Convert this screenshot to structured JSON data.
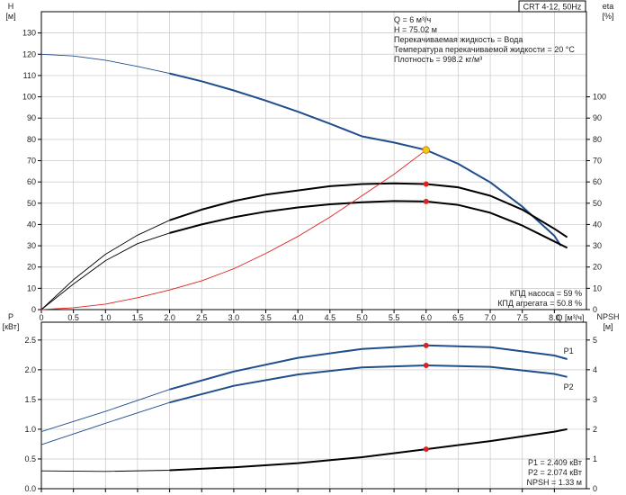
{
  "chart_data": [
    {
      "type": "line",
      "title": "CRT 4-12, 50Hz",
      "xlabel": "Q [м³/ч]",
      "ylabel_left": [
        "H",
        "[м]"
      ],
      "ylabel_right": [
        "eta",
        "[%]"
      ],
      "xlim": [
        0,
        8.5
      ],
      "ylim_left": [
        0,
        140
      ],
      "ylim_right": [
        0,
        140
      ],
      "grid": true,
      "x_ticks": [
        0,
        0.5,
        1.0,
        1.5,
        2.0,
        2.5,
        3.0,
        3.5,
        4.0,
        4.5,
        5.0,
        5.5,
        6.0,
        6.5,
        7.0,
        7.5,
        8.0
      ],
      "x_tick_labels": [
        "0",
        "0.5",
        "1.0",
        "1.5",
        "2.0",
        "2.5",
        "3.0",
        "3.5",
        "4.0",
        "4.5",
        "5.0",
        "5.5",
        "6.0",
        "6.5",
        "7.0",
        "7.5",
        "8.0"
      ],
      "y_ticks_left": [
        0,
        10,
        20,
        30,
        40,
        50,
        60,
        70,
        80,
        90,
        100,
        110,
        120,
        130
      ],
      "y_ticks_right": [
        0,
        10,
        20,
        30,
        40,
        50,
        60,
        70,
        80,
        90,
        100
      ],
      "info_lines": [
        "Q = 6 м³/ч",
        "H = 75.02 м",
        "Перекачиваемая жидкость = Вода",
        "Температура перекачиваемой жидкости = 20 °C",
        "Плотность = 998.2 кг/м³"
      ],
      "result_lines": [
        "КПД насоса = 59 %",
        "КПД агрегата = 50.8 %"
      ],
      "series": [
        {
          "name": "",
          "axis": "left",
          "color": "#1f4e8c",
          "x": [
            0,
            0.5,
            1,
            1.5,
            2,
            2.5,
            3,
            3.5,
            4,
            4.5,
            5,
            5.5,
            6,
            6.5,
            7,
            7.5,
            8,
            8.1
          ],
          "y": [
            120,
            119.2,
            117.2,
            114.3,
            111,
            107.3,
            103,
            98.2,
            93,
            87.4,
            81.4,
            78.5,
            75,
            68.5,
            59.8,
            48.4,
            34.7,
            30
          ]
        },
        {
          "name": "",
          "axis": "right",
          "color": "#000000",
          "x": [
            0,
            0.5,
            1,
            1.5,
            2,
            2.5,
            3,
            3.5,
            4,
            4.5,
            5,
            5.5,
            6,
            6.5,
            7,
            7.5,
            8,
            8.2
          ],
          "y": [
            0,
            14,
            26,
            35,
            42,
            47,
            51,
            54,
            56,
            58,
            59,
            59.3,
            59,
            57.5,
            53.5,
            47,
            38,
            34
          ]
        },
        {
          "name": "",
          "axis": "right",
          "color": "#000000",
          "x": [
            0,
            0.5,
            1,
            1.5,
            2,
            2.5,
            3,
            3.5,
            4,
            4.5,
            5,
            5.5,
            6,
            6.5,
            7,
            7.5,
            8,
            8.2
          ],
          "y": [
            0,
            12,
            23,
            31,
            36,
            40,
            43.4,
            46,
            48,
            49.5,
            50.4,
            51,
            50.8,
            49.2,
            45.5,
            39.5,
            32,
            29
          ]
        },
        {
          "name": "",
          "axis": "left",
          "color": "#e02020",
          "x": [
            0,
            0.5,
            1,
            1.5,
            2,
            2.5,
            3,
            3.5,
            4,
            4.5,
            5,
            5.5,
            6
          ],
          "y": [
            0,
            0.9,
            2.6,
            5.6,
            9.2,
            13.5,
            19.2,
            26.4,
            34.4,
            43.5,
            53.5,
            63.6,
            75
          ]
        }
      ],
      "markers": [
        {
          "axis": "left",
          "x": 6,
          "y": 75.02,
          "color": "#f5c518"
        },
        {
          "axis": "right",
          "x": 6,
          "y": 59,
          "color": "#e02020"
        },
        {
          "axis": "right",
          "x": 6,
          "y": 50.8,
          "color": "#e02020"
        }
      ]
    },
    {
      "type": "line",
      "xlabel": "",
      "ylabel_left": [
        "P",
        "[кВт]"
      ],
      "ylabel_right": [
        "NPSH",
        "[м]"
      ],
      "xlim": [
        0,
        8.5
      ],
      "ylim_left": [
        0,
        2.8
      ],
      "ylim_right": [
        0,
        5.6
      ],
      "grid": true,
      "x_ticks": [
        0,
        0.5,
        1.0,
        1.5,
        2.0,
        2.5,
        3.0,
        3.5,
        4.0,
        4.5,
        5.0,
        5.5,
        6.0,
        6.5,
        7.0,
        7.5,
        8.0
      ],
      "y_ticks_left": [
        0,
        0.5,
        1.0,
        1.5,
        2.0,
        2.5
      ],
      "y_tick_labels_left": [
        "0.0",
        "0.5",
        "1.0",
        "1.5",
        "2.0",
        "2.5"
      ],
      "y_ticks_right": [
        0,
        1,
        2,
        3,
        4,
        5
      ],
      "result_lines": [
        "P1 = 2.409 кВт",
        "P2 = 2.074 кВт",
        "NPSH = 1.33 м"
      ],
      "series": [
        {
          "name": "P1",
          "axis": "left",
          "color": "#1f4e8c",
          "x": [
            0,
            1,
            2,
            3,
            4,
            5,
            6,
            7,
            8,
            8.2
          ],
          "y": [
            0.96,
            1.3,
            1.67,
            1.97,
            2.2,
            2.35,
            2.41,
            2.38,
            2.24,
            2.18
          ]
        },
        {
          "name": "P2",
          "axis": "left",
          "color": "#1f4e8c",
          "x": [
            0,
            1,
            2,
            3,
            4,
            5,
            6,
            7,
            8,
            8.2
          ],
          "y": [
            0.74,
            1.1,
            1.45,
            1.73,
            1.92,
            2.04,
            2.074,
            2.05,
            1.93,
            1.88
          ]
        },
        {
          "name": "",
          "axis": "right",
          "color": "#000000",
          "x": [
            0,
            1,
            2,
            3,
            4,
            5,
            6,
            7,
            8,
            8.2
          ],
          "y": [
            0.6,
            0.58,
            0.62,
            0.72,
            0.86,
            1.06,
            1.33,
            1.6,
            1.92,
            2.0
          ]
        }
      ],
      "markers": [
        {
          "axis": "left",
          "x": 6,
          "y": 2.409,
          "color": "#e02020"
        },
        {
          "axis": "left",
          "x": 6,
          "y": 2.074,
          "color": "#e02020"
        },
        {
          "axis": "right",
          "x": 6,
          "y": 1.33,
          "color": "#e02020"
        }
      ]
    }
  ]
}
